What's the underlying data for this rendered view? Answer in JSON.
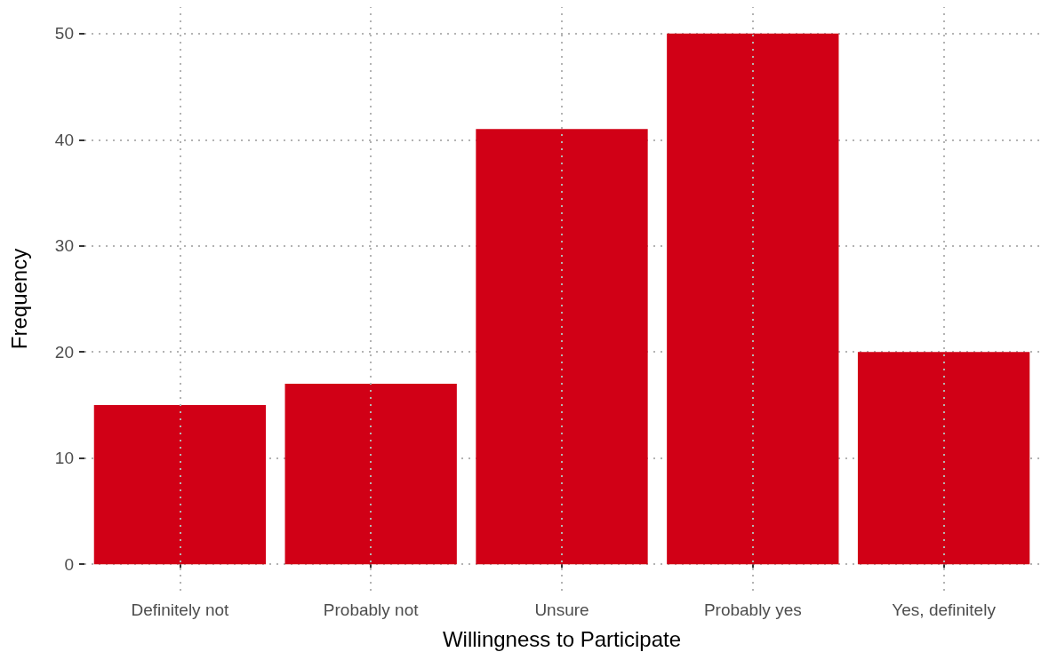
{
  "chart_data": {
    "type": "bar",
    "xlabel": "Willingness to Participate",
    "ylabel": "Frequency",
    "categories": [
      "Definitely not",
      "Probably not",
      "Unsure",
      "Probably yes",
      "Yes, definitely"
    ],
    "values": [
      15,
      17,
      41,
      50,
      20
    ],
    "color": "#d10016",
    "ylim": [
      -2.5,
      52.5
    ],
    "yticks": [
      0,
      10,
      20,
      30,
      40,
      50
    ],
    "grid": true
  }
}
